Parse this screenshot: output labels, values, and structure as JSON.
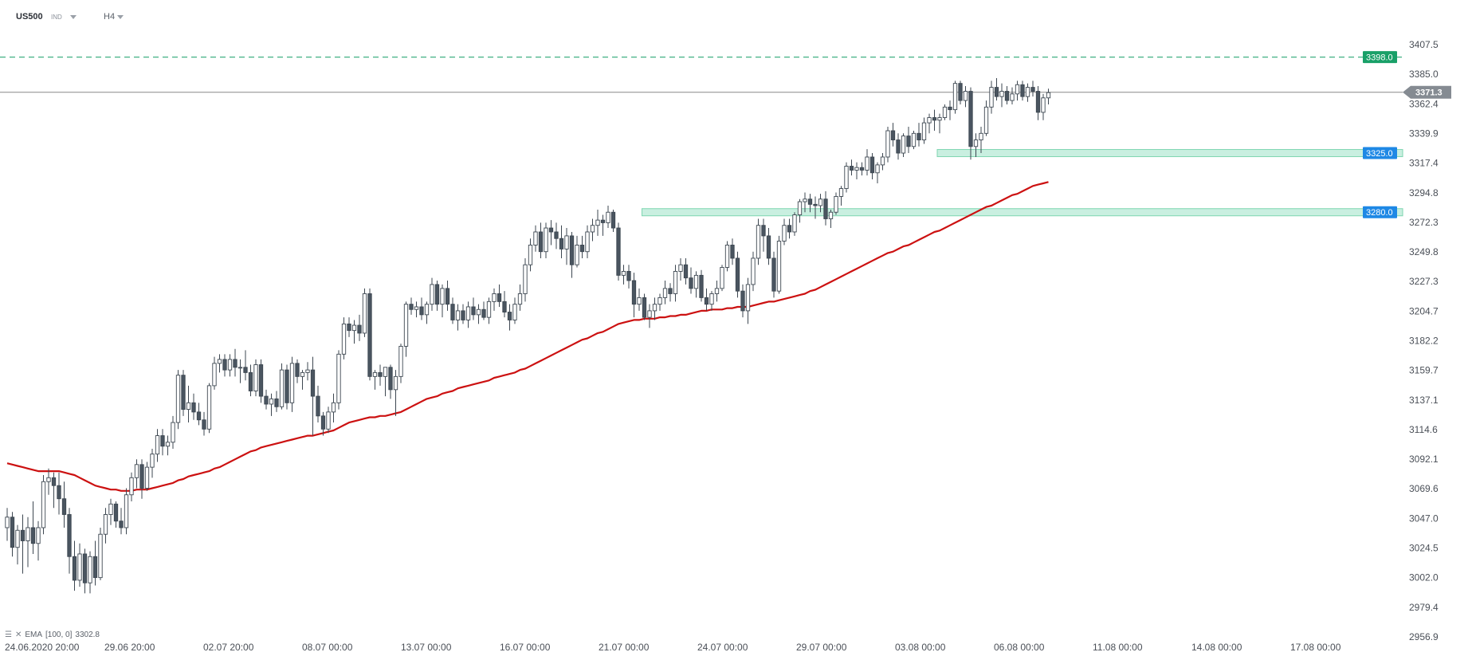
{
  "header": {
    "symbol": "US500",
    "symbol_type": "IND",
    "timeframe": "H4"
  },
  "indicator": {
    "name": "EMA",
    "params": "[100,  0]",
    "value": "3302.8"
  },
  "colors": {
    "up_candle_fill": "#ffffff",
    "candle_stroke": "#3d4751",
    "down_candle_fill": "#4a5560",
    "ema": "#cc1111",
    "zone_fill": "#c9efe0",
    "zone_stroke": "#7fd6b1",
    "resistance_line": "#2aa876",
    "resistance_tag": "#19a068",
    "zone_tag": "#1e88e5",
    "price_line": "#888888",
    "price_tag": "#858b92"
  },
  "chart_data": {
    "type": "candlestick",
    "ylim": [
      2950.0,
      3415.0
    ],
    "y_ticks": [
      "3407.5",
      "3385.0",
      "3362.4",
      "3339.9",
      "3317.4",
      "3294.8",
      "3272.3",
      "3249.8",
      "3227.3",
      "3204.7",
      "3182.2",
      "3159.7",
      "3137.1",
      "3114.6",
      "3092.1",
      "3069.6",
      "3047.0",
      "3024.5",
      "3002.0",
      "2979.4",
      "2956.9"
    ],
    "x_labels": [
      "24.06.2020  20:00",
      "29.06  20:00",
      "02.07  20:00",
      "08.07  00:00",
      "13.07  00:00",
      "16.07  00:00",
      "21.07  00:00",
      "24.07  00:00",
      "29.07  00:00",
      "03.08  00:00",
      "06.08  00:00",
      "11.08  00:00",
      "14.08  00:00",
      "17.08  00:00"
    ],
    "current_price": "3371.3",
    "levels": [
      {
        "label": "3398.0",
        "value": 3398.0,
        "kind": "resistance"
      },
      {
        "label": "3325.0",
        "value": 3325.0,
        "kind": "zone",
        "from_candle": 180
      },
      {
        "label": "3280.0",
        "value": 3280.0,
        "kind": "zone",
        "from_candle": 123
      }
    ],
    "candles": [
      [
        3040,
        3055,
        3030,
        3048
      ],
      [
        3048,
        3052,
        3018,
        3025
      ],
      [
        3025,
        3042,
        3012,
        3038
      ],
      [
        3038,
        3050,
        3005,
        3030
      ],
      [
        3030,
        3048,
        3010,
        3040
      ],
      [
        3040,
        3060,
        3020,
        3028
      ],
      [
        3028,
        3045,
        3015,
        3040
      ],
      [
        3040,
        3080,
        3035,
        3075
      ],
      [
        3075,
        3085,
        3065,
        3078
      ],
      [
        3078,
        3082,
        3055,
        3072
      ],
      [
        3072,
        3082,
        3050,
        3062
      ],
      [
        3062,
        3075,
        3040,
        3050
      ],
      [
        3050,
        3055,
        3005,
        3018
      ],
      [
        3018,
        3030,
        2992,
        3000
      ],
      [
        3000,
        3028,
        2995,
        3020
      ],
      [
        3020,
        3024,
        2990,
        2998
      ],
      [
        2998,
        3022,
        2990,
        3018
      ],
      [
        3018,
        3030,
        2996,
        3002
      ],
      [
        3002,
        3040,
        3000,
        3035
      ],
      [
        3035,
        3055,
        3028,
        3050
      ],
      [
        3050,
        3062,
        3042,
        3058
      ],
      [
        3058,
        3060,
        3040,
        3045
      ],
      [
        3045,
        3055,
        3035,
        3040
      ],
      [
        3040,
        3070,
        3035,
        3065
      ],
      [
        3065,
        3082,
        3060,
        3078
      ],
      [
        3078,
        3092,
        3070,
        3088
      ],
      [
        3088,
        3092,
        3062,
        3070
      ],
      [
        3070,
        3090,
        3068,
        3086
      ],
      [
        3086,
        3100,
        3078,
        3096
      ],
      [
        3096,
        3115,
        3090,
        3110
      ],
      [
        3110,
        3115,
        3095,
        3102
      ],
      [
        3102,
        3110,
        3095,
        3105
      ],
      [
        3105,
        3125,
        3100,
        3120
      ],
      [
        3120,
        3160,
        3115,
        3156
      ],
      [
        3156,
        3160,
        3125,
        3130
      ],
      [
        3130,
        3148,
        3120,
        3135
      ],
      [
        3135,
        3142,
        3122,
        3128
      ],
      [
        3128,
        3135,
        3118,
        3122
      ],
      [
        3122,
        3128,
        3110,
        3115
      ],
      [
        3115,
        3150,
        3112,
        3148
      ],
      [
        3148,
        3170,
        3145,
        3165
      ],
      [
        3165,
        3172,
        3158,
        3168
      ],
      [
        3168,
        3172,
        3155,
        3160
      ],
      [
        3160,
        3172,
        3155,
        3168
      ],
      [
        3168,
        3176,
        3155,
        3162
      ],
      [
        3162,
        3168,
        3150,
        3162
      ],
      [
        3162,
        3175,
        3152,
        3158
      ],
      [
        3158,
        3164,
        3140,
        3144
      ],
      [
        3144,
        3168,
        3140,
        3164
      ],
      [
        3164,
        3168,
        3135,
        3140
      ],
      [
        3140,
        3145,
        3130,
        3134
      ],
      [
        3134,
        3142,
        3125,
        3138
      ],
      [
        3138,
        3144,
        3128,
        3132
      ],
      [
        3132,
        3165,
        3130,
        3160
      ],
      [
        3160,
        3164,
        3130,
        3135
      ],
      [
        3135,
        3170,
        3128,
        3165
      ],
      [
        3165,
        3168,
        3150,
        3155
      ],
      [
        3155,
        3160,
        3145,
        3158
      ],
      [
        3158,
        3166,
        3152,
        3160
      ],
      [
        3160,
        3170,
        3110,
        3140
      ],
      [
        3140,
        3148,
        3120,
        3125
      ],
      [
        3125,
        3128,
        3110,
        3115
      ],
      [
        3115,
        3132,
        3112,
        3128
      ],
      [
        3128,
        3142,
        3120,
        3135
      ],
      [
        3135,
        3175,
        3130,
        3172
      ],
      [
        3172,
        3200,
        3168,
        3195
      ],
      [
        3195,
        3200,
        3185,
        3190
      ],
      [
        3190,
        3198,
        3180,
        3194
      ],
      [
        3194,
        3202,
        3182,
        3188
      ],
      [
        3188,
        3222,
        3185,
        3218
      ],
      [
        3218,
        3222,
        3152,
        3155
      ],
      [
        3155,
        3160,
        3145,
        3158
      ],
      [
        3158,
        3164,
        3148,
        3155
      ],
      [
        3155,
        3162,
        3140,
        3162
      ],
      [
        3162,
        3164,
        3138,
        3145
      ],
      [
        3145,
        3160,
        3125,
        3155
      ],
      [
        3155,
        3180,
        3150,
        3178
      ],
      [
        3178,
        3212,
        3170,
        3210
      ],
      [
        3210,
        3215,
        3202,
        3206
      ],
      [
        3206,
        3212,
        3200,
        3208
      ],
      [
        3208,
        3215,
        3198,
        3202
      ],
      [
        3202,
        3212,
        3195,
        3210
      ],
      [
        3210,
        3230,
        3205,
        3225
      ],
      [
        3225,
        3228,
        3205,
        3210
      ],
      [
        3210,
        3225,
        3200,
        3222
      ],
      [
        3222,
        3228,
        3205,
        3210
      ],
      [
        3210,
        3215,
        3195,
        3198
      ],
      [
        3198,
        3210,
        3190,
        3205
      ],
      [
        3205,
        3210,
        3195,
        3198
      ],
      [
        3198,
        3212,
        3192,
        3208
      ],
      [
        3208,
        3215,
        3198,
        3202
      ],
      [
        3202,
        3210,
        3195,
        3206
      ],
      [
        3206,
        3212,
        3198,
        3200
      ],
      [
        3200,
        3215,
        3195,
        3212
      ],
      [
        3212,
        3222,
        3205,
        3218
      ],
      [
        3218,
        3225,
        3208,
        3212
      ],
      [
        3212,
        3220,
        3200,
        3204
      ],
      [
        3204,
        3210,
        3190,
        3198
      ],
      [
        3198,
        3215,
        3195,
        3210
      ],
      [
        3210,
        3225,
        3205,
        3218
      ],
      [
        3218,
        3245,
        3212,
        3240
      ],
      [
        3240,
        3260,
        3235,
        3255
      ],
      [
        3255,
        3270,
        3250,
        3265
      ],
      [
        3265,
        3272,
        3245,
        3250
      ],
      [
        3250,
        3272,
        3245,
        3268
      ],
      [
        3268,
        3274,
        3255,
        3265
      ],
      [
        3265,
        3272,
        3252,
        3260
      ],
      [
        3260,
        3270,
        3245,
        3252
      ],
      [
        3252,
        3268,
        3240,
        3262
      ],
      [
        3262,
        3265,
        3230,
        3240
      ],
      [
        3240,
        3262,
        3238,
        3255
      ],
      [
        3255,
        3262,
        3245,
        3250
      ],
      [
        3250,
        3270,
        3245,
        3265
      ],
      [
        3265,
        3275,
        3258,
        3270
      ],
      [
        3270,
        3282,
        3262,
        3274
      ],
      [
        3274,
        3278,
        3262,
        3272
      ],
      [
        3272,
        3285,
        3268,
        3280
      ],
      [
        3280,
        3282,
        3265,
        3268
      ],
      [
        3268,
        3272,
        3228,
        3232
      ],
      [
        3232,
        3240,
        3225,
        3235
      ],
      [
        3235,
        3240,
        3222,
        3228
      ],
      [
        3228,
        3234,
        3200,
        3210
      ],
      [
        3210,
        3222,
        3205,
        3215
      ],
      [
        3215,
        3218,
        3198,
        3200
      ],
      [
        3200,
        3210,
        3192,
        3205
      ],
      [
        3205,
        3215,
        3198,
        3210
      ],
      [
        3210,
        3218,
        3205,
        3215
      ],
      [
        3215,
        3228,
        3210,
        3222
      ],
      [
        3222,
        3226,
        3212,
        3218
      ],
      [
        3218,
        3240,
        3212,
        3235
      ],
      [
        3235,
        3245,
        3228,
        3240
      ],
      [
        3240,
        3245,
        3225,
        3230
      ],
      [
        3230,
        3238,
        3218,
        3222
      ],
      [
        3222,
        3235,
        3215,
        3232
      ],
      [
        3232,
        3236,
        3212,
        3215
      ],
      [
        3215,
        3222,
        3205,
        3210
      ],
      [
        3210,
        3220,
        3205,
        3218
      ],
      [
        3218,
        3228,
        3212,
        3222
      ],
      [
        3222,
        3240,
        3220,
        3238
      ],
      [
        3238,
        3258,
        3235,
        3255
      ],
      [
        3255,
        3260,
        3240,
        3245
      ],
      [
        3245,
        3250,
        3215,
        3220
      ],
      [
        3220,
        3225,
        3200,
        3205
      ],
      [
        3205,
        3230,
        3195,
        3225
      ],
      [
        3225,
        3250,
        3220,
        3245
      ],
      [
        3245,
        3275,
        3240,
        3270
      ],
      [
        3270,
        3275,
        3250,
        3262
      ],
      [
        3262,
        3268,
        3240,
        3245
      ],
      [
        3245,
        3250,
        3215,
        3220
      ],
      [
        3220,
        3262,
        3218,
        3258
      ],
      [
        3258,
        3275,
        3255,
        3270
      ],
      [
        3270,
        3275,
        3260,
        3265
      ],
      [
        3265,
        3280,
        3262,
        3278
      ],
      [
        3278,
        3290,
        3272,
        3288
      ],
      [
        3288,
        3295,
        3280,
        3290
      ],
      [
        3290,
        3294,
        3280,
        3286
      ],
      [
        3286,
        3292,
        3275,
        3285
      ],
      [
        3285,
        3294,
        3280,
        3290
      ],
      [
        3290,
        3296,
        3270,
        3275
      ],
      [
        3275,
        3282,
        3268,
        3280
      ],
      [
        3280,
        3295,
        3278,
        3292
      ],
      [
        3292,
        3300,
        3285,
        3298
      ],
      [
        3298,
        3318,
        3295,
        3315
      ],
      [
        3315,
        3320,
        3308,
        3312
      ],
      [
        3312,
        3318,
        3305,
        3314
      ],
      [
        3314,
        3318,
        3308,
        3312
      ],
      [
        3312,
        3328,
        3308,
        3322
      ],
      [
        3322,
        3325,
        3305,
        3310
      ],
      [
        3310,
        3318,
        3302,
        3316
      ],
      [
        3316,
        3325,
        3312,
        3322
      ],
      [
        3322,
        3345,
        3318,
        3342
      ],
      [
        3342,
        3348,
        3330,
        3335
      ],
      [
        3335,
        3340,
        3320,
        3325
      ],
      [
        3325,
        3340,
        3322,
        3338
      ],
      [
        3338,
        3345,
        3325,
        3330
      ],
      [
        3330,
        3342,
        3328,
        3340
      ],
      [
        3340,
        3348,
        3330,
        3335
      ],
      [
        3335,
        3352,
        3332,
        3348
      ],
      [
        3348,
        3355,
        3340,
        3352
      ],
      [
        3352,
        3358,
        3342,
        3350
      ],
      [
        3350,
        3355,
        3340,
        3352
      ],
      [
        3352,
        3362,
        3350,
        3360
      ],
      [
        3360,
        3365,
        3350,
        3358
      ],
      [
        3358,
        3380,
        3355,
        3378
      ],
      [
        3378,
        3380,
        3362,
        3365
      ],
      [
        3365,
        3376,
        3360,
        3372
      ],
      [
        3372,
        3375,
        3320,
        3330
      ],
      [
        3330,
        3340,
        3322,
        3335
      ],
      [
        3335,
        3345,
        3325,
        3340
      ],
      [
        3340,
        3365,
        3338,
        3360
      ],
      [
        3360,
        3380,
        3355,
        3375
      ],
      [
        3375,
        3382,
        3365,
        3368
      ],
      [
        3368,
        3378,
        3360,
        3372
      ],
      [
        3372,
        3376,
        3362,
        3365
      ],
      [
        3365,
        3375,
        3362,
        3370
      ],
      [
        3370,
        3380,
        3365,
        3377
      ],
      [
        3377,
        3380,
        3365,
        3368
      ],
      [
        3368,
        3378,
        3364,
        3375
      ],
      [
        3375,
        3380,
        3368,
        3372
      ],
      [
        3372,
        3376,
        3350,
        3356
      ],
      [
        3356,
        3370,
        3350,
        3367
      ],
      [
        3367,
        3374,
        3362,
        3371
      ]
    ],
    "ema": [
      3089,
      3088,
      3087,
      3086,
      3085,
      3084,
      3083,
      3083,
      3083,
      3083,
      3083,
      3082,
      3081,
      3080,
      3078,
      3076,
      3074,
      3072,
      3071,
      3070,
      3069,
      3069,
      3068,
      3068,
      3068,
      3069,
      3069,
      3069,
      3070,
      3071,
      3072,
      3073,
      3074,
      3076,
      3077,
      3079,
      3080,
      3081,
      3082,
      3083,
      3085,
      3086,
      3088,
      3090,
      3092,
      3094,
      3096,
      3098,
      3099,
      3101,
      3102,
      3103,
      3104,
      3105,
      3106,
      3107,
      3108,
      3109,
      3110,
      3110,
      3111,
      3112,
      3113,
      3114,
      3116,
      3118,
      3120,
      3121,
      3122,
      3123,
      3124,
      3124,
      3125,
      3125,
      3126,
      3127,
      3128,
      3130,
      3132,
      3134,
      3136,
      3138,
      3139,
      3140,
      3142,
      3143,
      3144,
      3146,
      3147,
      3148,
      3149,
      3150,
      3151,
      3152,
      3154,
      3155,
      3156,
      3157,
      3158,
      3160,
      3161,
      3163,
      3165,
      3167,
      3169,
      3171,
      3173,
      3175,
      3177,
      3179,
      3181,
      3183,
      3184,
      3186,
      3188,
      3189,
      3191,
      3193,
      3195,
      3196,
      3197,
      3198,
      3198,
      3199,
      3199,
      3199,
      3200,
      3200,
      3201,
      3201,
      3202,
      3202,
      3203,
      3204,
      3205,
      3205,
      3206,
      3206,
      3206,
      3207,
      3207,
      3208,
      3208,
      3208,
      3209,
      3210,
      3211,
      3212,
      3212,
      3213,
      3214,
      3215,
      3216,
      3217,
      3218,
      3220,
      3221,
      3223,
      3225,
      3227,
      3229,
      3231,
      3233,
      3235,
      3237,
      3239,
      3241,
      3243,
      3245,
      3247,
      3249,
      3250,
      3252,
      3254,
      3255,
      3257,
      3259,
      3261,
      3263,
      3265,
      3266,
      3268,
      3270,
      3272,
      3274,
      3276,
      3278,
      3280,
      3282,
      3284,
      3285,
      3287,
      3289,
      3291,
      3293,
      3294,
      3296,
      3298,
      3300,
      3301,
      3302,
      3303
    ]
  }
}
